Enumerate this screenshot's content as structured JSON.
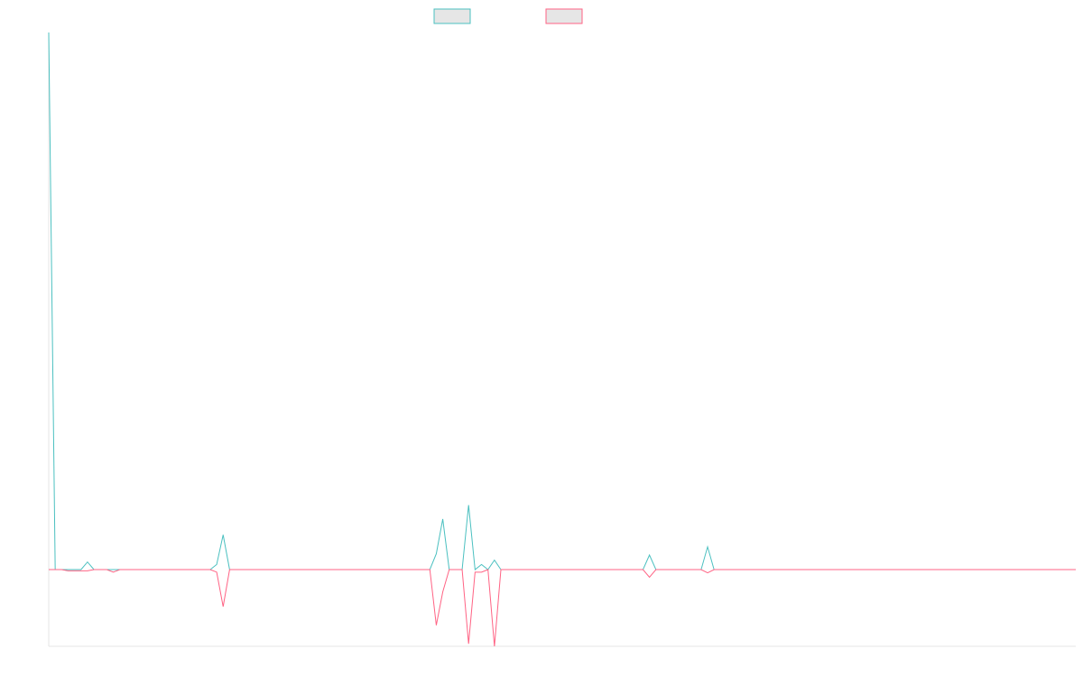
{
  "chart_data": {
    "type": "line",
    "title": "",
    "xlabel": "",
    "ylabel": "",
    "grid": false,
    "legend": "top-center",
    "x_count": 160,
    "ylim": [
      -12,
      85
    ],
    "series": [
      {
        "name": "",
        "color": "#4bc0c0",
        "fill": "#e6e6e6",
        "points": [
          [
            0,
            85
          ],
          [
            1,
            0
          ],
          [
            2,
            0
          ],
          [
            3,
            0
          ],
          [
            4,
            0
          ],
          [
            5,
            0
          ],
          [
            6,
            1.2
          ],
          [
            7,
            0
          ],
          [
            8,
            0
          ],
          [
            9,
            0
          ],
          [
            10,
            0
          ],
          [
            11,
            0
          ],
          [
            12,
            0
          ],
          [
            13,
            0
          ],
          [
            14,
            0
          ],
          [
            15,
            0
          ],
          [
            16,
            0
          ],
          [
            17,
            0
          ],
          [
            18,
            0
          ],
          [
            19,
            0
          ],
          [
            20,
            0
          ],
          [
            21,
            0
          ],
          [
            22,
            0
          ],
          [
            23,
            0
          ],
          [
            24,
            0
          ],
          [
            25,
            0
          ],
          [
            26,
            0.8
          ],
          [
            27,
            5.5
          ],
          [
            28,
            0
          ],
          [
            29,
            0
          ],
          [
            30,
            0
          ],
          [
            31,
            0
          ],
          [
            32,
            0
          ],
          [
            33,
            0
          ],
          [
            34,
            0
          ],
          [
            35,
            0
          ],
          [
            36,
            0
          ],
          [
            37,
            0
          ],
          [
            38,
            0
          ],
          [
            39,
            0
          ],
          [
            40,
            0
          ],
          [
            41,
            0
          ],
          [
            42,
            0
          ],
          [
            43,
            0
          ],
          [
            44,
            0
          ],
          [
            45,
            0
          ],
          [
            46,
            0
          ],
          [
            47,
            0
          ],
          [
            48,
            0
          ],
          [
            49,
            0
          ],
          [
            50,
            0
          ],
          [
            51,
            0
          ],
          [
            52,
            0
          ],
          [
            53,
            0
          ],
          [
            54,
            0
          ],
          [
            55,
            0
          ],
          [
            56,
            0
          ],
          [
            57,
            0
          ],
          [
            58,
            0
          ],
          [
            59,
            0
          ],
          [
            60,
            2.5
          ],
          [
            61,
            8
          ],
          [
            62,
            0
          ],
          [
            63,
            0
          ],
          [
            64,
            0
          ],
          [
            65,
            10.2
          ],
          [
            66,
            0
          ],
          [
            67,
            0.8
          ],
          [
            68,
            0
          ],
          [
            69,
            1.5
          ],
          [
            70,
            0
          ],
          [
            71,
            0
          ],
          [
            72,
            0
          ],
          [
            73,
            0
          ],
          [
            74,
            0
          ],
          [
            75,
            0
          ],
          [
            76,
            0
          ],
          [
            77,
            0
          ],
          [
            78,
            0
          ],
          [
            79,
            0
          ],
          [
            80,
            0
          ],
          [
            81,
            0
          ],
          [
            82,
            0
          ],
          [
            83,
            0
          ],
          [
            84,
            0
          ],
          [
            85,
            0
          ],
          [
            86,
            0
          ],
          [
            87,
            0
          ],
          [
            88,
            0
          ],
          [
            89,
            0
          ],
          [
            90,
            0
          ],
          [
            91,
            0
          ],
          [
            92,
            0
          ],
          [
            93,
            2.3
          ],
          [
            94,
            0
          ],
          [
            95,
            0
          ],
          [
            96,
            0
          ],
          [
            97,
            0
          ],
          [
            98,
            0
          ],
          [
            99,
            0
          ],
          [
            100,
            0
          ],
          [
            101,
            0
          ],
          [
            102,
            3.6
          ],
          [
            103,
            0
          ],
          [
            159,
            0
          ]
        ]
      },
      {
        "name": "",
        "color": "#ff6384",
        "fill": "#e6e6e6",
        "points": [
          [
            0,
            0
          ],
          [
            1,
            0
          ],
          [
            2,
            0
          ],
          [
            3,
            -0.2
          ],
          [
            4,
            -0.2
          ],
          [
            5,
            -0.2
          ],
          [
            6,
            -0.2
          ],
          [
            7,
            0
          ],
          [
            8,
            0
          ],
          [
            9,
            0
          ],
          [
            10,
            -0.4
          ],
          [
            11,
            0
          ],
          [
            12,
            0
          ],
          [
            13,
            0
          ],
          [
            14,
            0
          ],
          [
            15,
            0
          ],
          [
            16,
            0
          ],
          [
            17,
            0
          ],
          [
            18,
            0
          ],
          [
            19,
            0
          ],
          [
            20,
            0
          ],
          [
            21,
            0
          ],
          [
            22,
            0
          ],
          [
            23,
            0
          ],
          [
            24,
            0
          ],
          [
            25,
            0
          ],
          [
            26,
            -0.4
          ],
          [
            27,
            -5.8
          ],
          [
            28,
            0
          ],
          [
            29,
            0
          ],
          [
            30,
            0
          ],
          [
            31,
            0
          ],
          [
            32,
            0
          ],
          [
            33,
            0
          ],
          [
            34,
            0
          ],
          [
            35,
            0
          ],
          [
            36,
            0
          ],
          [
            37,
            0
          ],
          [
            38,
            0
          ],
          [
            39,
            0
          ],
          [
            40,
            0
          ],
          [
            41,
            0
          ],
          [
            42,
            0
          ],
          [
            43,
            0
          ],
          [
            44,
            0
          ],
          [
            45,
            0
          ],
          [
            46,
            0
          ],
          [
            47,
            0
          ],
          [
            48,
            0
          ],
          [
            49,
            0
          ],
          [
            50,
            0
          ],
          [
            51,
            0
          ],
          [
            52,
            0
          ],
          [
            53,
            0
          ],
          [
            54,
            0
          ],
          [
            55,
            0
          ],
          [
            56,
            0
          ],
          [
            57,
            0
          ],
          [
            58,
            0
          ],
          [
            59,
            0
          ],
          [
            60,
            -8.7
          ],
          [
            61,
            -3.5
          ],
          [
            62,
            0
          ],
          [
            63,
            0
          ],
          [
            64,
            0
          ],
          [
            65,
            -11.6
          ],
          [
            66,
            -0.4
          ],
          [
            67,
            -0.4
          ],
          [
            68,
            0
          ],
          [
            69,
            -12
          ],
          [
            70,
            0
          ],
          [
            71,
            0
          ],
          [
            72,
            0
          ],
          [
            73,
            0
          ],
          [
            74,
            0
          ],
          [
            75,
            0
          ],
          [
            76,
            0
          ],
          [
            77,
            0
          ],
          [
            78,
            0
          ],
          [
            79,
            0
          ],
          [
            80,
            0
          ],
          [
            81,
            0
          ],
          [
            82,
            0
          ],
          [
            83,
            0
          ],
          [
            84,
            0
          ],
          [
            85,
            0
          ],
          [
            86,
            0
          ],
          [
            87,
            0
          ],
          [
            88,
            0
          ],
          [
            89,
            0
          ],
          [
            90,
            0
          ],
          [
            91,
            0
          ],
          [
            92,
            0
          ],
          [
            93,
            -1.2
          ],
          [
            94,
            0
          ],
          [
            95,
            0
          ],
          [
            96,
            0
          ],
          [
            97,
            0
          ],
          [
            98,
            0
          ],
          [
            99,
            0
          ],
          [
            100,
            0
          ],
          [
            101,
            0
          ],
          [
            102,
            -0.5
          ],
          [
            103,
            0
          ],
          [
            159,
            0
          ]
        ]
      }
    ]
  }
}
